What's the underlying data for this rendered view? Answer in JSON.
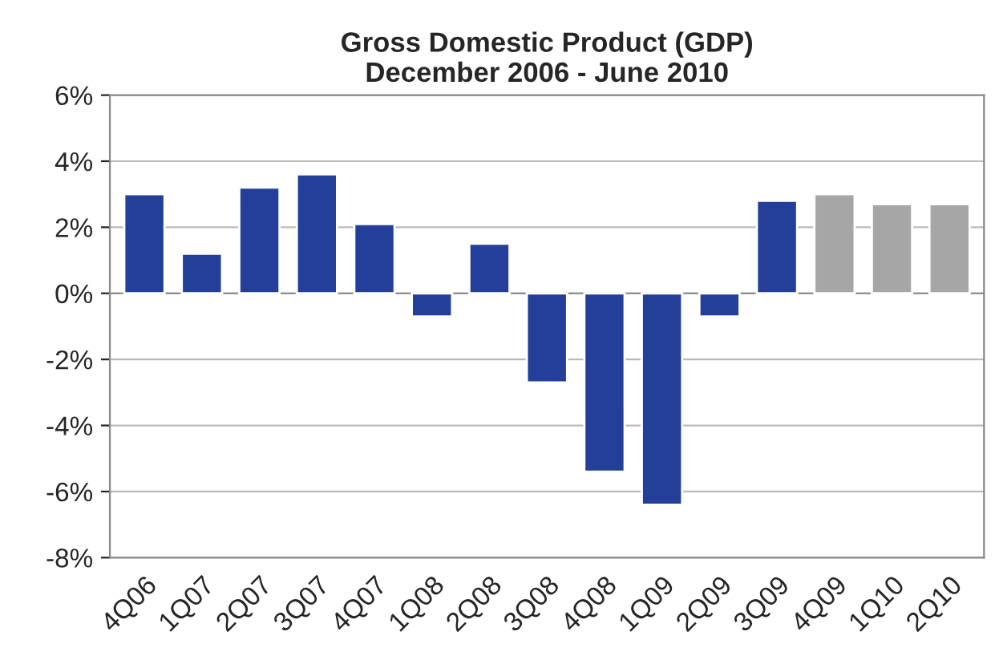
{
  "chart_data": {
    "type": "bar",
    "title": "Gross Domestic Product (GDP)\nDecember 2006 - June 2010",
    "categories": [
      "4Q06",
      "1Q07",
      "2Q07",
      "3Q07",
      "4Q07",
      "1Q08",
      "2Q08",
      "3Q08",
      "4Q08",
      "1Q09",
      "2Q09",
      "3Q09",
      "4Q09",
      "1Q10",
      "2Q10"
    ],
    "values": [
      3.0,
      1.2,
      3.2,
      3.6,
      2.1,
      -0.7,
      1.5,
      -2.7,
      -5.4,
      -6.4,
      -0.7,
      2.8,
      3.0,
      2.7,
      2.7
    ],
    "colors": [
      "#233f99",
      "#233f99",
      "#233f99",
      "#233f99",
      "#233f99",
      "#233f99",
      "#233f99",
      "#233f99",
      "#233f99",
      "#233f99",
      "#233f99",
      "#233f99",
      "#a6a6a6",
      "#a6a6a6",
      "#a6a6a6"
    ],
    "ylim": [
      -8,
      6
    ],
    "yticks": [
      {
        "value": -8,
        "label": "-8%"
      },
      {
        "value": -6,
        "label": "-6%"
      },
      {
        "value": -4,
        "label": "-4%"
      },
      {
        "value": -2,
        "label": "-2%"
      },
      {
        "value": 0,
        "label": "0%"
      },
      {
        "value": 2,
        "label": "2%"
      },
      {
        "value": 4,
        "label": "4%"
      },
      {
        "value": 6,
        "label": "6%"
      }
    ],
    "grid": "y"
  }
}
